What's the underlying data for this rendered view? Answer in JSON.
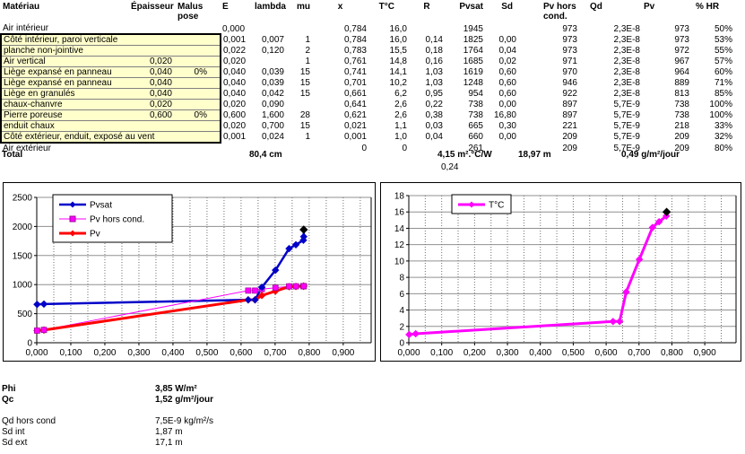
{
  "table": {
    "columns": [
      "Matériau",
      "Épaisseur",
      "Malus\npose",
      "E",
      "lambda",
      "mu",
      "x",
      "T°C",
      "R",
      "Pvsat",
      "Sd",
      "Pv hors\ncond.",
      "Qd",
      "Pv",
      "% HR"
    ],
    "box_rows": [
      1,
      10
    ],
    "rows": [
      [
        "Air intérieur",
        "",
        "",
        "0,000",
        "",
        "",
        "0,784",
        "16,0",
        "",
        "1945",
        "",
        "973",
        "2,3E-8",
        "973",
        "50%"
      ],
      [
        "Côté intérieur, paroi verticale",
        "",
        "",
        "0,001",
        "0,007",
        "1",
        "0,784",
        "16,0",
        "0,14",
        "1825",
        "0,00",
        "973",
        "2,3E-8",
        "973",
        "53%"
      ],
      [
        "planche non-jointive",
        "",
        "",
        "0,022",
        "0,120",
        "2",
        "0,783",
        "15,5",
        "0,18",
        "1764",
        "0,04",
        "973",
        "2,3E-8",
        "972",
        "55%"
      ],
      [
        "Air vertical",
        "0,020",
        "",
        "0,020",
        "",
        "1",
        "0,761",
        "14,8",
        "0,16",
        "1685",
        "0,02",
        "971",
        "2,3E-8",
        "967",
        "57%"
      ],
      [
        "Liège expansé en panneau",
        "0,040",
        "0%",
        "0,040",
        "0,039",
        "15",
        "0,741",
        "14,1",
        "1,03",
        "1619",
        "0,60",
        "970",
        "2,3E-8",
        "964",
        "60%"
      ],
      [
        "Liège expansé en panneau",
        "0,040",
        "",
        "0,040",
        "0,039",
        "15",
        "0,701",
        "10,2",
        "1,03",
        "1248",
        "0,60",
        "946",
        "2,3E-8",
        "889",
        "71%"
      ],
      [
        "Liège en granulés",
        "0,040",
        "",
        "0,040",
        "0,042",
        "15",
        "0,661",
        "6,2",
        "0,95",
        "954",
        "0,60",
        "922",
        "2,3E-8",
        "813",
        "85%"
      ],
      [
        "chaux-chanvre",
        "0,020",
        "",
        "0,020",
        "0,090",
        "",
        "0,641",
        "2,6",
        "0,22",
        "738",
        "0,00",
        "897",
        "5,7E-9",
        "738",
        "100%"
      ],
      [
        "Pierre poreuse",
        "0,600",
        "0%",
        "0,600",
        "1,600",
        "28",
        "0,621",
        "2,6",
        "0,38",
        "738",
        "16,80",
        "897",
        "5,7E-9",
        "738",
        "100%"
      ],
      [
        "enduit chaux",
        "",
        "",
        "0,020",
        "0,700",
        "15",
        "0,021",
        "1,1",
        "0,03",
        "665",
        "0,30",
        "221",
        "5,7E-9",
        "218",
        "33%"
      ],
      [
        "Côté extérieur, enduit, exposé au vent",
        "",
        "",
        "0,001",
        "0,024",
        "1",
        "0,001",
        "1,0",
        "0,04",
        "660",
        "0,00",
        "209",
        "5,7E-9",
        "209",
        "32%"
      ],
      [
        "Air extérieur",
        "",
        "",
        "",
        "",
        "",
        "0",
        "0",
        "",
        "261",
        "",
        "209",
        "5,7E-9",
        "209",
        "80%"
      ]
    ],
    "totals": {
      "label": "Total",
      "thickness": "80,4 cm",
      "resistance": "4,15 m².°C/W",
      "resistance2": "0,24",
      "sd": "18,97 m",
      "flux": "0,49 g/m²/jour"
    }
  },
  "summary": {
    "rows": [
      {
        "label": "Phi",
        "value": "3,85 W/m²",
        "bold": true
      },
      {
        "label": "Qc",
        "value": "1,52 g/m²/jour",
        "bold": true
      },
      {
        "label": "Qd hors cond",
        "value": "7,5E-9 kg/m²/s",
        "bold": false
      },
      {
        "label": "Sd int",
        "value": "1,87 m",
        "bold": false
      },
      {
        "label": "Sd ext",
        "value": "17,1 m",
        "bold": false
      }
    ]
  },
  "colors": {
    "box_fill": "#FFFFCC",
    "pvsat": "#0000C8",
    "pv_hors_cond": "#FF00FF",
    "pv": "#FF0000",
    "temperature": "#FF00FF",
    "end_marker": "#000000",
    "gridline": "#909090"
  },
  "chart_data": [
    {
      "type": "line",
      "name": "pressure-profile",
      "title": "",
      "xlabel": "",
      "ylabel": "",
      "x": [
        0.001,
        0.021,
        0.621,
        0.641,
        0.661,
        0.701,
        0.741,
        0.761,
        0.783,
        0.784,
        0.784
      ],
      "series": [
        {
          "name": "Pvsat",
          "values": [
            660,
            665,
            738,
            738,
            954,
            1248,
            1619,
            1685,
            1764,
            1825,
            1945
          ],
          "color": "#0000C8",
          "marker": "diamond",
          "width": 2.5,
          "end_marker_color": "#000000"
        },
        {
          "name": "Pv hors cond.",
          "values": [
            209,
            221,
            897,
            897,
            922,
            946,
            970,
            971,
            973,
            973,
            973
          ],
          "color": "#FF00FF",
          "marker": "square",
          "width": 1
        },
        {
          "name": "Pv",
          "values": [
            209,
            218,
            738,
            738,
            813,
            889,
            964,
            967,
            972,
            973,
            973
          ],
          "color": "#FF0000",
          "marker": "diamond",
          "width": 3
        }
      ],
      "xlim": [
        0,
        0.982
      ],
      "ylim": [
        0,
        2500
      ],
      "xminor": 0.05,
      "xticks": {
        "values": [
          0,
          0.1,
          0.2,
          0.3,
          0.4,
          0.5,
          0.6,
          0.7,
          0.8,
          0.9
        ],
        "labels": [
          "0,000",
          "0,100",
          "0,200",
          "0,300",
          "0,400",
          "0,500",
          "0,600",
          "0,700",
          "0,800",
          "0,900"
        ]
      },
      "yticks": {
        "values": [
          0,
          500,
          1000,
          1500,
          2000,
          2500
        ],
        "labels": [
          "0",
          "500",
          "1000",
          "1500",
          "2000",
          "2500"
        ]
      },
      "grid": true,
      "legend_position": "top-left"
    },
    {
      "type": "line",
      "name": "temperature-profile",
      "title": "",
      "xlabel": "",
      "ylabel": "",
      "x": [
        0.001,
        0.021,
        0.621,
        0.641,
        0.661,
        0.701,
        0.741,
        0.761,
        0.783,
        0.784,
        0.784
      ],
      "series": [
        {
          "name": "T°C",
          "values": [
            1.0,
            1.1,
            2.6,
            2.6,
            6.2,
            10.2,
            14.1,
            14.8,
            15.5,
            16.0,
            16.0
          ],
          "color": "#FF00FF",
          "marker": "diamond",
          "width": 3,
          "end_marker_color": "#000000"
        }
      ],
      "xlim": [
        0,
        0.995
      ],
      "ylim": [
        0,
        18
      ],
      "xminor": 0.05,
      "xticks": {
        "values": [
          0,
          0.1,
          0.2,
          0.3,
          0.4,
          0.5,
          0.6,
          0.7,
          0.8,
          0.9
        ],
        "labels": [
          "0,000",
          "0,100",
          "0,200",
          "0,300",
          "0,400",
          "0,500",
          "0,600",
          "0,700",
          "0,800",
          "0,900"
        ]
      },
      "yticks": {
        "values": [
          0,
          2,
          4,
          6,
          8,
          10,
          12,
          14,
          16,
          18
        ],
        "labels": [
          "0",
          "2",
          "4",
          "6",
          "8",
          "10",
          "12",
          "14",
          "16",
          "18"
        ]
      },
      "grid": true,
      "legend_position": "top-left"
    }
  ]
}
